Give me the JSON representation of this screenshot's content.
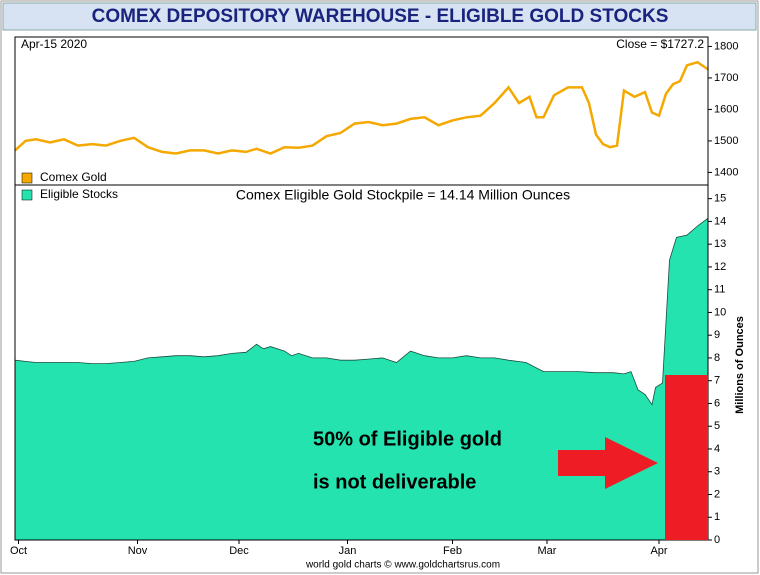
{
  "title": "COMEX DEPOSITORY WAREHOUSE - ELIGIBLE GOLD STOCKS",
  "footer": "world gold charts © www.goldchartsrus.com",
  "chart_data": [
    {
      "type": "line",
      "annotations": [
        "Apr-15  2020",
        "Close = $1727.2"
      ],
      "x": [
        -1,
        2,
        5,
        9,
        13,
        17,
        21,
        25,
        29,
        33,
        37,
        41,
        45,
        49,
        53,
        57,
        61,
        65,
        68,
        72,
        76,
        80,
        84,
        88,
        92,
        96,
        100,
        104,
        108,
        112,
        116,
        120,
        124,
        128,
        132,
        136,
        140,
        143,
        146,
        148,
        150,
        153,
        157,
        161,
        163,
        165,
        167,
        169,
        171,
        173,
        176,
        179,
        181,
        183,
        185,
        187,
        189,
        191,
        194,
        197
      ],
      "series": [
        {
          "name": "Comex Gold",
          "color": "#f5a800",
          "values": [
            1470,
            1500,
            1505,
            1495,
            1505,
            1485,
            1490,
            1485,
            1500,
            1510,
            1480,
            1465,
            1460,
            1470,
            1470,
            1460,
            1470,
            1465,
            1475,
            1460,
            1480,
            1478,
            1485,
            1515,
            1525,
            1555,
            1560,
            1550,
            1555,
            1570,
            1575,
            1550,
            1565,
            1575,
            1580,
            1620,
            1670,
            1620,
            1640,
            1575,
            1575,
            1645,
            1670,
            1670,
            1620,
            1520,
            1490,
            1480,
            1485,
            1660,
            1640,
            1655,
            1590,
            1580,
            1650,
            1680,
            1690,
            1740,
            1750,
            1727.2
          ]
        }
      ],
      "xlim": [
        -1,
        197
      ],
      "ylim": [
        1360,
        1830
      ],
      "yticks": [
        1400,
        1500,
        1600,
        1700,
        1800
      ]
    },
    {
      "type": "area",
      "subtitle": "Comex Eligible Gold Stockpile = 14.14 Million Ounces",
      "y_label": "Millions of Ounces",
      "annotations": [
        "50% of Eligible gold",
        "is not deliverable"
      ],
      "x": [
        -1,
        2,
        5,
        9,
        13,
        17,
        21,
        25,
        29,
        33,
        37,
        41,
        45,
        49,
        53,
        57,
        61,
        65,
        68,
        70,
        72,
        76,
        78,
        80,
        84,
        88,
        92,
        96,
        100,
        104,
        108,
        112,
        116,
        120,
        124,
        128,
        132,
        136,
        140,
        145,
        150,
        155,
        160,
        165,
        170,
        173,
        175,
        177,
        179,
        181,
        182,
        184,
        186,
        188,
        191,
        194,
        197
      ],
      "series": [
        {
          "name": "Eligible Stocks",
          "color": "#24e3ae",
          "values": [
            7.9,
            7.85,
            7.8,
            7.8,
            7.8,
            7.8,
            7.75,
            7.75,
            7.8,
            7.85,
            8.0,
            8.05,
            8.1,
            8.1,
            8.05,
            8.1,
            8.2,
            8.25,
            8.6,
            8.4,
            8.5,
            8.3,
            8.1,
            8.2,
            8.0,
            8.0,
            7.9,
            7.9,
            7.95,
            8.0,
            7.8,
            8.3,
            8.1,
            8.0,
            8.0,
            8.1,
            8.0,
            8.0,
            7.9,
            7.8,
            7.4,
            7.4,
            7.4,
            7.35,
            7.35,
            7.3,
            7.4,
            6.6,
            6.4,
            5.95,
            6.7,
            6.9,
            12.3,
            13.3,
            13.4,
            13.8,
            14.14
          ]
        }
      ],
      "xlim": [
        -1,
        197
      ],
      "xticks": [
        {
          "value": 0,
          "label": "Oct"
        },
        {
          "value": 34,
          "label": "Nov"
        },
        {
          "value": 63,
          "label": "Dec"
        },
        {
          "value": 94,
          "label": "Jan"
        },
        {
          "value": 124,
          "label": "Feb"
        },
        {
          "value": 151,
          "label": "Mar"
        },
        {
          "value": 183,
          "label": "Apr"
        }
      ],
      "ylim": [
        0,
        15.6
      ],
      "yticks": [
        0,
        1,
        2,
        3,
        4,
        5,
        6,
        7,
        8,
        9,
        10,
        11,
        12,
        13,
        14,
        15
      ]
    }
  ]
}
